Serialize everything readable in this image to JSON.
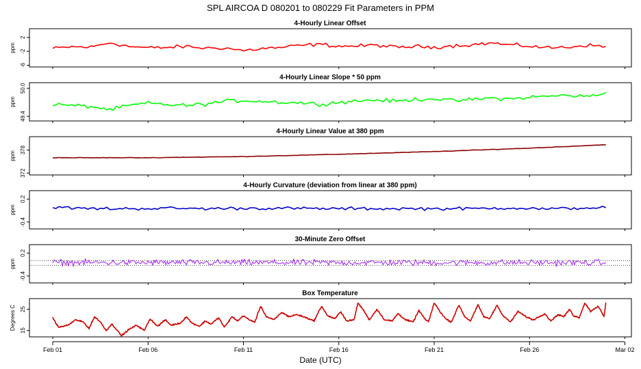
{
  "figure": {
    "title": "SPL   AIRCOA D   080201 to 080229   Fit Parameters in PPM",
    "xlabel": "Date (UTC)",
    "xticks": [
      "Feb 01",
      "Feb 06",
      "Feb 11",
      "Feb 16",
      "Feb 21",
      "Feb 26",
      "Mar 02"
    ]
  },
  "colors": {
    "offset": "#ff0000",
    "slope": "#00ff00",
    "value": "#8b0000",
    "curvature": "#0000cc",
    "zero": "#a020f0",
    "temperature": "#cc0000"
  },
  "chart_data": [
    {
      "type": "line",
      "name": "offset",
      "title": "4-Hourly Linear Offset",
      "ylabel": "ppm",
      "yticks": [
        "2",
        "-2",
        "-6"
      ],
      "ytick_values": [
        2,
        -2,
        -6
      ],
      "ylim": [
        -6.5,
        4.5
      ],
      "xlim": [
        0,
        30
      ],
      "x_start": 0,
      "x_end": 29,
      "n_points": 175,
      "shape": [
        [
          0,
          -1.2
        ],
        [
          1,
          -0.7
        ],
        [
          2,
          -0.8
        ],
        [
          3,
          0.5
        ],
        [
          4,
          -0.6
        ],
        [
          5,
          -1.0
        ],
        [
          6,
          -0.9
        ],
        [
          7,
          -0.6
        ],
        [
          8,
          -1.1
        ],
        [
          9,
          -1.0
        ],
        [
          10,
          -1.8
        ],
        [
          11,
          -1.2
        ],
        [
          12,
          -0.9
        ],
        [
          13,
          -0.3
        ],
        [
          14,
          0.0
        ],
        [
          15,
          -0.5
        ],
        [
          16,
          -0.5
        ],
        [
          17,
          -0.2
        ],
        [
          18,
          -0.9
        ],
        [
          19,
          -0.6
        ],
        [
          20,
          -0.8
        ],
        [
          21,
          -0.4
        ],
        [
          22,
          -0.1
        ],
        [
          23,
          0.4
        ],
        [
          24,
          -0.2
        ],
        [
          25,
          -0.5
        ],
        [
          26,
          -1.0
        ],
        [
          27,
          -0.8
        ],
        [
          28,
          -0.2
        ],
        [
          29,
          -0.7
        ]
      ],
      "noise": 0.45
    },
    {
      "type": "line",
      "name": "slope",
      "title": "4-Hourly Linear Slope * 50 ppm",
      "ylabel": "ppm",
      "yticks": [
        "50.0",
        "49.4"
      ],
      "ytick_values": [
        50.0,
        49.4
      ],
      "ylim": [
        49.3,
        50.12
      ],
      "xlim": [
        0,
        30
      ],
      "x_start": 0,
      "x_end": 29,
      "n_points": 175,
      "shape": [
        [
          0,
          49.66
        ],
        [
          1,
          49.63
        ],
        [
          2,
          49.61
        ],
        [
          3,
          49.54
        ],
        [
          4,
          49.63
        ],
        [
          5,
          49.68
        ],
        [
          6,
          49.65
        ],
        [
          7,
          49.63
        ],
        [
          8,
          49.66
        ],
        [
          9,
          49.72
        ],
        [
          10,
          49.74
        ],
        [
          11,
          49.72
        ],
        [
          12,
          49.7
        ],
        [
          13,
          49.69
        ],
        [
          14,
          49.66
        ],
        [
          15,
          49.7
        ],
        [
          16,
          49.73
        ],
        [
          17,
          49.75
        ],
        [
          18,
          49.72
        ],
        [
          19,
          49.76
        ],
        [
          20,
          49.78
        ],
        [
          21,
          49.73
        ],
        [
          22,
          49.76
        ],
        [
          23,
          49.79
        ],
        [
          24,
          49.77
        ],
        [
          25,
          49.81
        ],
        [
          26,
          49.83
        ],
        [
          27,
          49.85
        ],
        [
          28,
          49.82
        ],
        [
          29,
          49.9
        ]
      ],
      "noise": 0.035
    },
    {
      "type": "line",
      "name": "value",
      "title": "4-Hourly Linear Value at 380 ppm",
      "ylabel": "ppm",
      "yticks": [
        "378",
        "372"
      ],
      "ytick_values": [
        378,
        372
      ],
      "ylim": [
        371.5,
        381.5
      ],
      "xlim": [
        0,
        30
      ],
      "x_start": 0,
      "x_end": 29,
      "n_points": 175,
      "shape": [
        [
          0,
          376.0
        ],
        [
          5,
          376.0
        ],
        [
          10,
          376.3
        ],
        [
          15,
          376.9
        ],
        [
          20,
          377.6
        ],
        [
          25,
          378.5
        ],
        [
          29,
          379.4
        ]
      ],
      "noise": 0.05
    },
    {
      "type": "line",
      "name": "curvature",
      "title": "4-Hourly Curvature (deviation from linear at 380 ppm)",
      "ylabel": "ppm",
      "yticks": [
        "0.2",
        "-0.4"
      ],
      "ytick_values": [
        0.2,
        -0.4
      ],
      "ylim": [
        -0.58,
        0.42
      ],
      "xlim": [
        0,
        30
      ],
      "x_start": 0,
      "x_end": 29,
      "n_points": 175,
      "shape": [
        [
          0,
          -0.02
        ],
        [
          2,
          -0.05
        ],
        [
          4,
          -0.05
        ],
        [
          6,
          -0.04
        ],
        [
          8,
          -0.05
        ],
        [
          10,
          -0.04
        ],
        [
          12,
          -0.04
        ],
        [
          14,
          -0.05
        ],
        [
          16,
          -0.05
        ],
        [
          18,
          -0.05
        ],
        [
          20,
          -0.05
        ],
        [
          22,
          -0.05
        ],
        [
          24,
          -0.03
        ],
        [
          26,
          -0.06
        ],
        [
          28,
          -0.03
        ],
        [
          29,
          -0.02
        ]
      ],
      "noise": 0.035
    },
    {
      "type": "line",
      "name": "zero",
      "title": "30-Minute Zero Offset",
      "ylabel": "ppm",
      "yticks": [
        "0.2",
        "-0.4"
      ],
      "ytick_values": [
        0.2,
        -0.4
      ],
      "ylim": [
        -0.58,
        0.42
      ],
      "xlim": [
        0,
        30
      ],
      "x_start": 0,
      "x_end": 29,
      "n_points": 460,
      "reference_lines": [
        0.0,
        -0.12
      ],
      "shape": [
        [
          0,
          -0.05
        ],
        [
          29,
          -0.05
        ]
      ],
      "noise": 0.07
    },
    {
      "type": "line",
      "name": "temperature",
      "title": "Box Temperature",
      "ylabel": "Degrees C",
      "yticks": [
        "25",
        "15"
      ],
      "ytick_values": [
        25,
        15
      ],
      "ylim": [
        12,
        30
      ],
      "xlim": [
        0,
        30
      ],
      "x_start": 0,
      "x_end": 29,
      "n_points": 1160,
      "shape": [
        [
          0,
          21
        ],
        [
          0.3,
          16.5
        ],
        [
          0.8,
          17.5
        ],
        [
          1.2,
          20
        ],
        [
          1.6,
          19
        ],
        [
          1.9,
          16
        ],
        [
          2.2,
          21.5
        ],
        [
          2.5,
          19
        ],
        [
          2.8,
          15
        ],
        [
          3.1,
          18
        ],
        [
          3.3,
          16
        ],
        [
          3.6,
          12.5
        ],
        [
          4.0,
          15.5
        ],
        [
          4.4,
          17.5
        ],
        [
          4.8,
          15
        ],
        [
          5.1,
          20.5
        ],
        [
          5.5,
          17
        ],
        [
          5.9,
          20
        ],
        [
          6.2,
          17.5
        ],
        [
          6.7,
          18.5
        ],
        [
          7.0,
          21.5
        ],
        [
          7.3,
          18.5
        ],
        [
          7.7,
          17
        ],
        [
          8.0,
          19.5
        ],
        [
          8.3,
          18
        ],
        [
          8.7,
          21
        ],
        [
          9.0,
          16.5
        ],
        [
          9.4,
          21.5
        ],
        [
          9.7,
          19.5
        ],
        [
          10.0,
          22
        ],
        [
          10.3,
          20
        ],
        [
          10.6,
          19
        ],
        [
          10.9,
          26.5
        ],
        [
          11.2,
          21.5
        ],
        [
          11.6,
          20
        ],
        [
          12.0,
          23.5
        ],
        [
          12.4,
          21.5
        ],
        [
          12.8,
          22.5
        ],
        [
          13.3,
          21
        ],
        [
          13.7,
          19.5
        ],
        [
          14.1,
          26.5
        ],
        [
          14.4,
          22
        ],
        [
          14.8,
          20.5
        ],
        [
          15.1,
          24
        ],
        [
          15.4,
          19.5
        ],
        [
          15.8,
          20
        ],
        [
          16.0,
          28
        ],
        [
          16.3,
          24.5
        ],
        [
          16.6,
          20
        ],
        [
          17.0,
          25
        ],
        [
          17.4,
          20
        ],
        [
          17.8,
          19.5
        ],
        [
          18.1,
          23
        ],
        [
          18.5,
          20
        ],
        [
          18.9,
          19
        ],
        [
          19.2,
          24.5
        ],
        [
          19.5,
          20.5
        ],
        [
          19.7,
          19
        ],
        [
          20.0,
          28
        ],
        [
          20.3,
          24
        ],
        [
          20.6,
          20.5
        ],
        [
          20.9,
          19
        ],
        [
          21.3,
          27
        ],
        [
          21.6,
          21.5
        ],
        [
          21.9,
          19.5
        ],
        [
          22.3,
          27
        ],
        [
          22.6,
          21.5
        ],
        [
          22.9,
          20.5
        ],
        [
          23.3,
          27
        ],
        [
          23.6,
          22
        ],
        [
          24.0,
          19
        ],
        [
          24.4,
          24
        ],
        [
          24.8,
          21.5
        ],
        [
          25.2,
          20
        ],
        [
          25.5,
          21.5
        ],
        [
          25.8,
          23
        ],
        [
          26.1,
          19.5
        ],
        [
          26.5,
          22.5
        ],
        [
          26.8,
          21.5
        ],
        [
          27.1,
          25
        ],
        [
          27.3,
          22
        ],
        [
          27.6,
          21
        ],
        [
          27.9,
          28
        ],
        [
          28.2,
          24
        ],
        [
          28.6,
          26.5
        ],
        [
          28.9,
          21.5
        ],
        [
          29.0,
          28
        ]
      ],
      "noise": 0.3
    }
  ]
}
